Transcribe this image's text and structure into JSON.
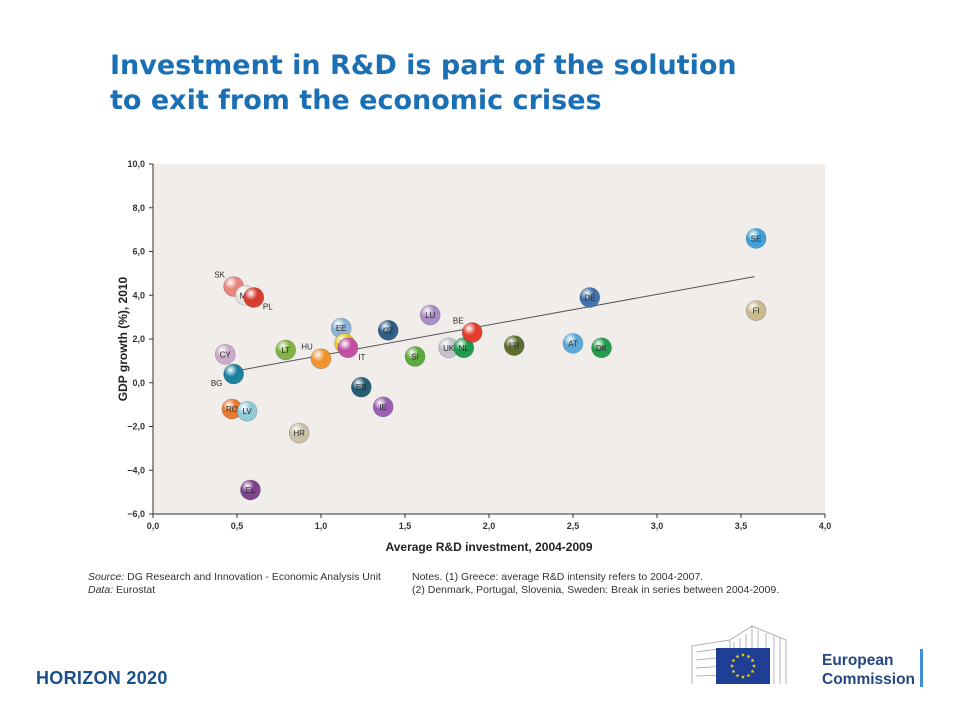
{
  "slide": {
    "title_line1": "Investment in R&D is part of the solution",
    "title_line2": "to exit from the economic crises",
    "source_label": "Source:",
    "source_text": " DG Research and Innovation - Economic Analysis Unit",
    "data_label": "Data:",
    "data_text": " Eurostat",
    "notes_line1": "Notes. (1) Greece: average R&D intensity refers to 2004-2007.",
    "notes_line2": "(2) Denmark, Portugal, Slovenia, Sweden: Break in series between 2004-2009.",
    "horizon": "HORIZON 2020",
    "ec_line1": "European",
    "ec_line2": "Commission",
    "title_color": "#1b6fb5",
    "brand_blue": "#24477f"
  },
  "chart_data": {
    "type": "scatter",
    "xlabel": "Average R&D investment, 2004-2009",
    "ylabel": "GDP growth (%), 2010",
    "xlim": [
      0,
      4
    ],
    "ylim": [
      -6,
      10
    ],
    "xticks": [
      "0,0",
      "0,5",
      "1,0",
      "1,5",
      "2,0",
      "2,5",
      "3,0",
      "3,5",
      "4,0"
    ],
    "yticks": [
      "−6,0",
      "−4,0",
      "−2,0",
      "0,0",
      "2,0",
      "4,0",
      "6,0",
      "8,0",
      "10,0"
    ],
    "grid": false,
    "trendline": {
      "x": [
        0.5,
        3.58
      ],
      "y": [
        0.55,
        4.85
      ]
    },
    "points": [
      {
        "label": "SK",
        "x": 0.48,
        "y": 4.4,
        "color": "#e8837a",
        "label_pos": "upper-left"
      },
      {
        "label": "MT",
        "x": 0.55,
        "y": 4.0,
        "color": "#e6e2dc",
        "label_pos": "inside"
      },
      {
        "label": "PL",
        "x": 0.6,
        "y": 3.9,
        "color": "#d63a2c",
        "label_pos": "lower-right"
      },
      {
        "label": "CY",
        "x": 0.43,
        "y": 1.3,
        "color": "#c9a9c8",
        "label_pos": "inside"
      },
      {
        "label": "BG",
        "x": 0.48,
        "y": 0.4,
        "color": "#1a7f9e",
        "label_pos": "lower-left"
      },
      {
        "label": "RO",
        "x": 0.47,
        "y": -1.2,
        "color": "#e8762c",
        "label_pos": "inside"
      },
      {
        "label": "LV",
        "x": 0.56,
        "y": -1.3,
        "color": "#8ec9d6",
        "label_pos": "inside"
      },
      {
        "label": "EL",
        "x": 0.58,
        "y": -4.9,
        "color": "#7a3e8f",
        "label_pos": "inside"
      },
      {
        "label": "LT",
        "x": 0.79,
        "y": 1.5,
        "color": "#7fb241",
        "label_pos": "inside"
      },
      {
        "label": "HR",
        "x": 0.87,
        "y": -2.3,
        "color": "#cbc1a8",
        "label_pos": "inside"
      },
      {
        "label": "HU",
        "x": 1.0,
        "y": 1.1,
        "color": "#f0922a",
        "label_pos": "upper-left"
      },
      {
        "label": "EE",
        "x": 1.12,
        "y": 2.5,
        "color": "#8cb3d8",
        "label_pos": "inside"
      },
      {
        "label": "PT",
        "x": 1.14,
        "y": 1.8,
        "color": "#e8c92a",
        "label_pos": "inside"
      },
      {
        "label": "IT",
        "x": 1.16,
        "y": 1.6,
        "color": "#c34ba4",
        "label_pos": "lower-right"
      },
      {
        "label": "ES",
        "x": 1.24,
        "y": -0.2,
        "color": "#215b70",
        "label_pos": "inside"
      },
      {
        "label": "CZ",
        "x": 1.4,
        "y": 2.4,
        "color": "#2c5b86",
        "label_pos": "inside"
      },
      {
        "label": "IE",
        "x": 1.37,
        "y": -1.1,
        "color": "#9a5bb3",
        "label_pos": "inside"
      },
      {
        "label": "SI",
        "x": 1.56,
        "y": 1.2,
        "color": "#5aa83a",
        "label_pos": "inside"
      },
      {
        "label": "LU",
        "x": 1.65,
        "y": 3.1,
        "color": "#a88bc2",
        "label_pos": "inside"
      },
      {
        "label": "UK",
        "x": 1.76,
        "y": 1.6,
        "color": "#c1c1cb",
        "label_pos": "inside"
      },
      {
        "label": "NL",
        "x": 1.85,
        "y": 1.6,
        "color": "#1a9a4a",
        "label_pos": "inside"
      },
      {
        "label": "BE",
        "x": 1.9,
        "y": 2.3,
        "color": "#e23a2a",
        "label_pos": "upper-left"
      },
      {
        "label": "FR",
        "x": 2.15,
        "y": 1.7,
        "color": "#5a6b2a",
        "label_pos": "inside"
      },
      {
        "label": "AT",
        "x": 2.5,
        "y": 1.8,
        "color": "#5aa8d8",
        "label_pos": "inside"
      },
      {
        "label": "DE",
        "x": 2.6,
        "y": 3.9,
        "color": "#3d6fa8",
        "label_pos": "inside"
      },
      {
        "label": "DK",
        "x": 2.67,
        "y": 1.6,
        "color": "#1e9a4a",
        "label_pos": "inside"
      },
      {
        "label": "SE",
        "x": 3.59,
        "y": 6.6,
        "color": "#3aa0d8",
        "label_pos": "inside"
      },
      {
        "label": "FI",
        "x": 3.59,
        "y": 3.3,
        "color": "#c9b98a",
        "label_pos": "inside"
      }
    ]
  }
}
